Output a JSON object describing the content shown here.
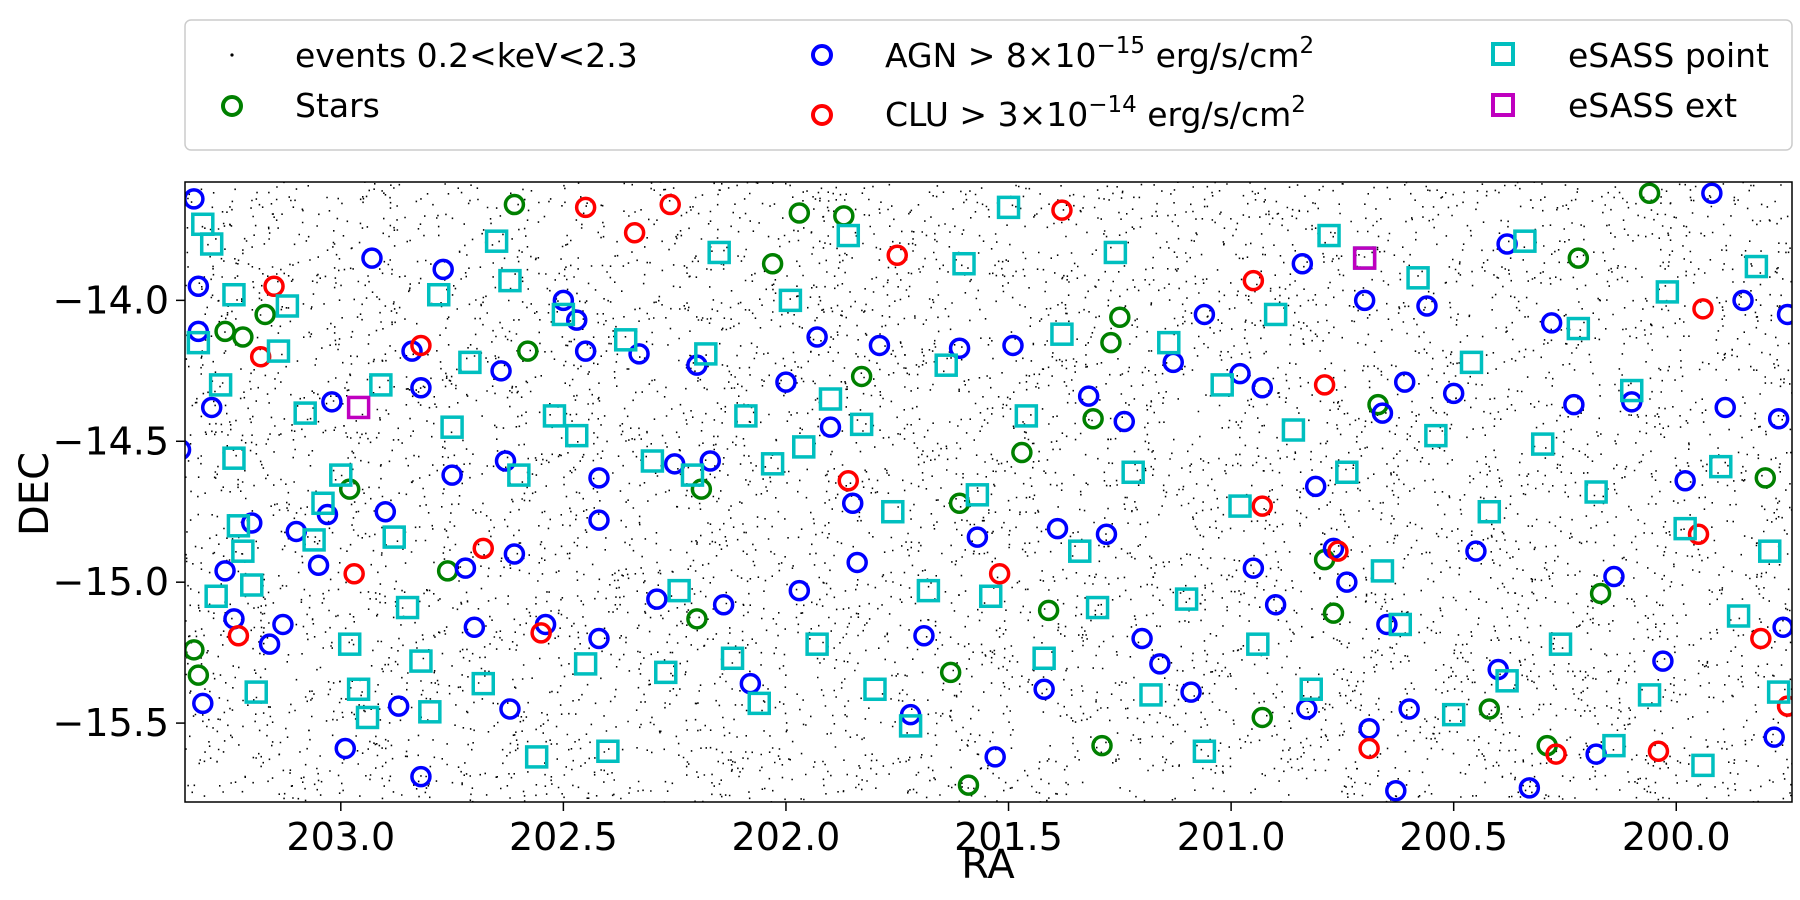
{
  "chart_data": {
    "type": "scatter",
    "xlabel": "RA",
    "ylabel": "DEC",
    "xlim": [
      203.35,
      199.74
    ],
    "ylim": [
      -15.78,
      -13.58
    ],
    "x_inverted": true,
    "x_ticks": [
      {
        "value": 203.0,
        "label": "203.0"
      },
      {
        "value": 202.5,
        "label": "202.5"
      },
      {
        "value": 202.0,
        "label": "202.0"
      },
      {
        "value": 201.5,
        "label": "201.5"
      },
      {
        "value": 201.0,
        "label": "201.0"
      },
      {
        "value": 200.5,
        "label": "200.5"
      },
      {
        "value": 200.0,
        "label": "200.0"
      }
    ],
    "y_ticks": [
      {
        "value": -14.0,
        "label": "−14.0"
      },
      {
        "value": -14.5,
        "label": "−14.5"
      },
      {
        "value": -15.0,
        "label": "−15.0"
      },
      {
        "value": -15.5,
        "label": "−15.5"
      }
    ],
    "grid": false,
    "legend_placement": "top, outside plot, 3 columns",
    "legend": [
      {
        "label": "events 0.2<keV<2.3",
        "marker": "dot",
        "color": "#000000"
      },
      {
        "label": "Stars",
        "marker": "circle",
        "color": "#008000"
      },
      {
        "label": "AGN > 8×10",
        "sup": "−15",
        "label_end": " erg/s/cm",
        "sup2": "2",
        "marker": "circle",
        "color": "#0000ff"
      },
      {
        "label": "CLU > 3×10",
        "sup": "−14",
        "label_end": " erg/s/cm",
        "sup2": "2",
        "marker": "circle",
        "color": "#ff0000"
      },
      {
        "label": "eSASS point",
        "marker": "square",
        "color": "#00bfbf"
      },
      {
        "label": "eSASS ext",
        "marker": "square",
        "color": "#bf00bf"
      }
    ],
    "colors": {
      "events": "#000000",
      "stars": "#008000",
      "agn": "#0000ff",
      "clu": "#ff0000",
      "esass_point": "#00bfbf",
      "esass_ext": "#bf00bf"
    },
    "series": [
      {
        "name": "Stars",
        "points": [
          [
            203.26,
            -14.11
          ],
          [
            203.22,
            -14.13
          ],
          [
            203.17,
            -14.05
          ],
          [
            202.98,
            -14.67
          ],
          [
            202.76,
            -14.96
          ],
          [
            202.61,
            -13.66
          ],
          [
            202.58,
            -14.18
          ],
          [
            202.19,
            -14.67
          ],
          [
            202.2,
            -15.13
          ],
          [
            202.03,
            -13.87
          ],
          [
            201.97,
            -13.69
          ],
          [
            201.87,
            -13.7
          ],
          [
            201.83,
            -14.27
          ],
          [
            201.61,
            -14.72
          ],
          [
            201.63,
            -15.32
          ],
          [
            201.59,
            -15.72
          ],
          [
            201.47,
            -14.54
          ],
          [
            201.41,
            -15.1
          ],
          [
            201.31,
            -14.42
          ],
          [
            201.29,
            -15.58
          ],
          [
            201.25,
            -14.06
          ],
          [
            201.27,
            -14.15
          ],
          [
            200.93,
            -15.48
          ],
          [
            200.79,
            -14.92
          ],
          [
            200.77,
            -15.11
          ],
          [
            200.67,
            -14.37
          ],
          [
            200.42,
            -15.45
          ],
          [
            200.29,
            -15.58
          ],
          [
            200.22,
            -13.85
          ],
          [
            200.17,
            -15.04
          ],
          [
            200.06,
            -13.62
          ],
          [
            199.8,
            -14.63
          ],
          [
            203.33,
            -15.24
          ],
          [
            203.32,
            -15.33
          ]
        ]
      },
      {
        "name": "AGN",
        "points": [
          [
            203.33,
            -13.64
          ],
          [
            203.32,
            -13.95
          ],
          [
            203.32,
            -14.11
          ],
          [
            203.29,
            -14.38
          ],
          [
            203.31,
            -15.43
          ],
          [
            203.26,
            -14.96
          ],
          [
            203.24,
            -15.13
          ],
          [
            203.2,
            -14.79
          ],
          [
            203.16,
            -15.22
          ],
          [
            203.13,
            -15.15
          ],
          [
            203.1,
            -14.82
          ],
          [
            203.05,
            -14.94
          ],
          [
            203.02,
            -14.36
          ],
          [
            203.03,
            -14.76
          ],
          [
            202.99,
            -15.59
          ],
          [
            202.93,
            -13.85
          ],
          [
            202.9,
            -14.75
          ],
          [
            202.87,
            -15.44
          ],
          [
            202.84,
            -14.18
          ],
          [
            202.82,
            -14.31
          ],
          [
            202.82,
            -15.69
          ],
          [
            202.77,
            -13.89
          ],
          [
            202.75,
            -14.62
          ],
          [
            202.72,
            -14.95
          ],
          [
            202.7,
            -15.16
          ],
          [
            202.64,
            -14.25
          ],
          [
            202.63,
            -14.57
          ],
          [
            202.61,
            -14.9
          ],
          [
            202.62,
            -15.45
          ],
          [
            202.54,
            -15.15
          ],
          [
            202.5,
            -14.0
          ],
          [
            202.47,
            -14.07
          ],
          [
            202.45,
            -14.18
          ],
          [
            202.42,
            -14.63
          ],
          [
            202.42,
            -14.78
          ],
          [
            202.42,
            -15.2
          ],
          [
            202.33,
            -14.19
          ],
          [
            202.29,
            -15.06
          ],
          [
            202.25,
            -14.58
          ],
          [
            202.2,
            -14.23
          ],
          [
            202.17,
            -14.57
          ],
          [
            202.14,
            -15.08
          ],
          [
            202.08,
            -15.36
          ],
          [
            202.0,
            -14.29
          ],
          [
            201.97,
            -15.03
          ],
          [
            201.93,
            -14.13
          ],
          [
            201.9,
            -14.45
          ],
          [
            201.85,
            -14.72
          ],
          [
            201.84,
            -14.93
          ],
          [
            201.79,
            -14.16
          ],
          [
            201.72,
            -15.47
          ],
          [
            201.69,
            -15.19
          ],
          [
            201.61,
            -14.17
          ],
          [
            201.57,
            -14.84
          ],
          [
            201.53,
            -15.62
          ],
          [
            201.49,
            -14.16
          ],
          [
            201.42,
            -15.38
          ],
          [
            201.39,
            -14.81
          ],
          [
            201.32,
            -14.34
          ],
          [
            201.28,
            -14.83
          ],
          [
            201.24,
            -14.43
          ],
          [
            201.2,
            -15.2
          ],
          [
            201.16,
            -15.29
          ],
          [
            201.13,
            -14.22
          ],
          [
            201.09,
            -15.39
          ],
          [
            201.06,
            -14.05
          ],
          [
            200.98,
            -14.26
          ],
          [
            200.95,
            -14.95
          ],
          [
            200.93,
            -14.31
          ],
          [
            200.9,
            -15.08
          ],
          [
            200.84,
            -13.87
          ],
          [
            200.83,
            -15.45
          ],
          [
            200.81,
            -14.66
          ],
          [
            200.77,
            -14.88
          ],
          [
            200.74,
            -15.0
          ],
          [
            200.7,
            -14.0
          ],
          [
            200.69,
            -15.52
          ],
          [
            200.66,
            -14.4
          ],
          [
            200.65,
            -15.15
          ],
          [
            200.63,
            -15.74
          ],
          [
            200.61,
            -14.29
          ],
          [
            200.6,
            -15.45
          ],
          [
            200.56,
            -14.02
          ],
          [
            200.5,
            -14.33
          ],
          [
            200.45,
            -14.89
          ],
          [
            200.4,
            -15.31
          ],
          [
            200.38,
            -13.8
          ],
          [
            200.33,
            -15.73
          ],
          [
            200.28,
            -14.08
          ],
          [
            200.23,
            -14.37
          ],
          [
            200.18,
            -15.61
          ],
          [
            200.14,
            -14.98
          ],
          [
            200.1,
            -14.36
          ],
          [
            200.03,
            -15.28
          ],
          [
            199.98,
            -14.64
          ],
          [
            199.92,
            -13.62
          ],
          [
            199.89,
            -14.38
          ],
          [
            199.85,
            -14.0
          ],
          [
            199.78,
            -15.55
          ],
          [
            199.77,
            -14.42
          ],
          [
            199.76,
            -15.16
          ],
          [
            199.75,
            -14.05
          ],
          [
            203.36,
            -14.53
          ]
        ]
      },
      {
        "name": "CLU",
        "points": [
          [
            203.18,
            -14.2
          ],
          [
            203.15,
            -13.95
          ],
          [
            203.23,
            -15.19
          ],
          [
            202.97,
            -14.97
          ],
          [
            202.82,
            -14.16
          ],
          [
            202.68,
            -14.88
          ],
          [
            202.55,
            -15.18
          ],
          [
            202.45,
            -13.67
          ],
          [
            202.34,
            -13.76
          ],
          [
            202.26,
            -13.66
          ],
          [
            201.86,
            -14.64
          ],
          [
            201.75,
            -13.84
          ],
          [
            201.52,
            -14.97
          ],
          [
            201.38,
            -13.68
          ],
          [
            200.95,
            -13.93
          ],
          [
            200.93,
            -14.73
          ],
          [
            200.79,
            -14.3
          ],
          [
            200.76,
            -14.89
          ],
          [
            200.69,
            -15.59
          ],
          [
            200.27,
            -15.61
          ],
          [
            200.04,
            -15.6
          ],
          [
            199.95,
            -14.83
          ],
          [
            199.94,
            -14.03
          ],
          [
            199.81,
            -15.2
          ],
          [
            199.75,
            -15.44
          ]
        ]
      },
      {
        "name": "eSASS point",
        "points": [
          [
            203.31,
            -13.73
          ],
          [
            203.29,
            -13.8
          ],
          [
            203.24,
            -13.98
          ],
          [
            203.32,
            -14.15
          ],
          [
            203.27,
            -14.3
          ],
          [
            203.24,
            -14.56
          ],
          [
            203.23,
            -14.8
          ],
          [
            203.22,
            -14.89
          ],
          [
            203.28,
            -15.05
          ],
          [
            203.2,
            -15.01
          ],
          [
            203.19,
            -15.39
          ],
          [
            203.14,
            -14.18
          ],
          [
            203.12,
            -14.02
          ],
          [
            203.08,
            -14.4
          ],
          [
            203.06,
            -14.85
          ],
          [
            203.04,
            -14.72
          ],
          [
            203.0,
            -14.62
          ],
          [
            202.98,
            -15.22
          ],
          [
            202.96,
            -15.38
          ],
          [
            202.94,
            -15.48
          ],
          [
            202.91,
            -14.3
          ],
          [
            202.88,
            -14.84
          ],
          [
            202.85,
            -15.09
          ],
          [
            202.82,
            -15.28
          ],
          [
            202.8,
            -15.46
          ],
          [
            202.78,
            -13.98
          ],
          [
            202.75,
            -14.45
          ],
          [
            202.71,
            -14.22
          ],
          [
            202.68,
            -15.36
          ],
          [
            202.65,
            -13.79
          ],
          [
            202.62,
            -13.93
          ],
          [
            202.6,
            -14.62
          ],
          [
            202.56,
            -15.62
          ],
          [
            202.52,
            -14.41
          ],
          [
            202.5,
            -14.05
          ],
          [
            202.47,
            -14.48
          ],
          [
            202.45,
            -15.29
          ],
          [
            202.4,
            -15.6
          ],
          [
            202.36,
            -14.14
          ],
          [
            202.3,
            -14.57
          ],
          [
            202.27,
            -15.32
          ],
          [
            202.24,
            -15.03
          ],
          [
            202.21,
            -14.62
          ],
          [
            202.18,
            -14.19
          ],
          [
            202.15,
            -13.83
          ],
          [
            202.12,
            -15.27
          ],
          [
            202.09,
            -14.41
          ],
          [
            202.06,
            -15.43
          ],
          [
            202.03,
            -14.58
          ],
          [
            201.99,
            -14.0
          ],
          [
            201.96,
            -14.52
          ],
          [
            201.93,
            -15.22
          ],
          [
            201.9,
            -14.35
          ],
          [
            201.86,
            -13.77
          ],
          [
            201.83,
            -14.44
          ],
          [
            201.8,
            -15.38
          ],
          [
            201.76,
            -14.75
          ],
          [
            201.72,
            -15.51
          ],
          [
            201.68,
            -15.03
          ],
          [
            201.64,
            -14.23
          ],
          [
            201.6,
            -13.87
          ],
          [
            201.57,
            -14.69
          ],
          [
            201.54,
            -15.05
          ],
          [
            201.5,
            -13.67
          ],
          [
            201.46,
            -14.41
          ],
          [
            201.42,
            -15.27
          ],
          [
            201.38,
            -14.12
          ],
          [
            201.34,
            -14.89
          ],
          [
            201.3,
            -15.09
          ],
          [
            201.26,
            -13.83
          ],
          [
            201.22,
            -14.61
          ],
          [
            201.18,
            -15.4
          ],
          [
            201.14,
            -14.15
          ],
          [
            201.1,
            -15.06
          ],
          [
            201.06,
            -15.6
          ],
          [
            201.02,
            -14.3
          ],
          [
            200.98,
            -14.73
          ],
          [
            200.94,
            -15.22
          ],
          [
            200.9,
            -14.05
          ],
          [
            200.86,
            -14.46
          ],
          [
            200.82,
            -15.38
          ],
          [
            200.78,
            -13.77
          ],
          [
            200.74,
            -14.61
          ],
          [
            200.7,
            -13.85
          ],
          [
            200.66,
            -14.96
          ],
          [
            200.62,
            -15.15
          ],
          [
            200.58,
            -13.92
          ],
          [
            200.54,
            -14.48
          ],
          [
            200.5,
            -15.47
          ],
          [
            200.46,
            -14.22
          ],
          [
            200.42,
            -14.75
          ],
          [
            200.38,
            -15.35
          ],
          [
            200.34,
            -13.79
          ],
          [
            200.3,
            -14.51
          ],
          [
            200.26,
            -15.22
          ],
          [
            200.22,
            -14.1
          ],
          [
            200.18,
            -14.68
          ],
          [
            200.14,
            -15.58
          ],
          [
            200.1,
            -14.32
          ],
          [
            200.06,
            -15.4
          ],
          [
            200.02,
            -13.97
          ],
          [
            199.98,
            -14.81
          ],
          [
            199.94,
            -15.65
          ],
          [
            199.9,
            -14.59
          ],
          [
            199.86,
            -15.12
          ],
          [
            199.82,
            -13.88
          ],
          [
            199.79,
            -14.89
          ],
          [
            199.77,
            -15.39
          ]
        ]
      },
      {
        "name": "eSASS ext",
        "points": [
          [
            202.96,
            -14.38
          ],
          [
            200.7,
            -13.85
          ]
        ]
      }
    ]
  }
}
